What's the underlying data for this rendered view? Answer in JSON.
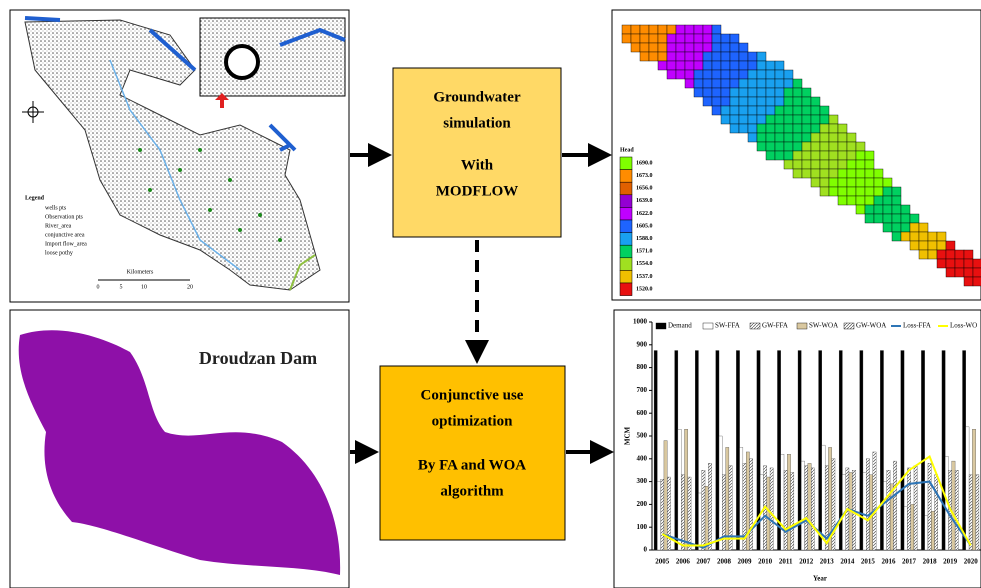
{
  "map": {
    "legend_title": "Legend",
    "legend_items": [
      "wells pts",
      "Observation pts",
      "River_area",
      "conjunctive area",
      "Import flow_area",
      "loose pothy"
    ],
    "scale_title": "Kilometers",
    "scale_labels": [
      "0",
      "5",
      "10",
      "20"
    ]
  },
  "simulation_box": {
    "lines": [
      "Groundwater",
      "simulation",
      "With",
      "MODFLOW"
    ]
  },
  "head_map": {
    "legend_title": "Head",
    "legend": [
      {
        "label": "1690.0",
        "color": "#80ff00"
      },
      {
        "label": "1673.0",
        "color": "#ff8c00"
      },
      {
        "label": "1656.0",
        "color": "#e06000"
      },
      {
        "label": "1639.0",
        "color": "#9400d3"
      },
      {
        "label": "1622.0",
        "color": "#c000ff"
      },
      {
        "label": "1605.0",
        "color": "#1e64ff"
      },
      {
        "label": "1588.0",
        "color": "#19a0f0"
      },
      {
        "label": "1571.0",
        "color": "#00d060"
      },
      {
        "label": "1554.0",
        "color": "#a0e020"
      },
      {
        "label": "1537.0",
        "color": "#f0c000"
      },
      {
        "label": "1520.0",
        "color": "#e81010"
      }
    ]
  },
  "dam": {
    "title": "Droudzan Dam"
  },
  "optimization_box": {
    "lines": [
      "Conjunctive use",
      "optimization",
      "By FA and WOA",
      "algorithm"
    ]
  },
  "chart_data": {
    "type": "bar",
    "y_label": "MCM",
    "x_label": "Year",
    "categories": [
      "2005",
      "2006",
      "2007",
      "2008",
      "2009",
      "2010",
      "2011",
      "2012",
      "2013",
      "2014",
      "2015",
      "2016",
      "2017",
      "2018",
      "2019",
      "2020"
    ],
    "ylim": [
      0,
      1000
    ],
    "yticks": [
      0,
      100,
      200,
      300,
      400,
      500,
      600,
      700,
      800,
      900,
      1000
    ],
    "series": [
      {
        "name": "Demand",
        "type": "bar",
        "color": "#000000",
        "values": [
          875,
          875,
          875,
          875,
          875,
          875,
          875,
          875,
          875,
          875,
          875,
          875,
          875,
          875,
          875,
          875
        ]
      },
      {
        "name": "SW-FFA",
        "type": "bar",
        "color": "#ffffff",
        "values": [
          300,
          530,
          250,
          500,
          450,
          330,
          420,
          390,
          460,
          330,
          340,
          300,
          190,
          150,
          410,
          540
        ]
      },
      {
        "name": "GW-FFA",
        "type": "bar",
        "color": "#8a8a8a",
        "values": [
          310,
          330,
          350,
          330,
          380,
          370,
          350,
          370,
          370,
          360,
          400,
          350,
          360,
          380,
          350,
          330
        ]
      },
      {
        "name": "SW-WOA",
        "type": "bar",
        "color": "#d9c8a0",
        "values": [
          480,
          530,
          280,
          450,
          430,
          320,
          420,
          380,
          450,
          340,
          330,
          290,
          200,
          170,
          390,
          530
        ]
      },
      {
        "name": "GW-WOA",
        "type": "bar",
        "color": "#c8c8c8",
        "values": [
          320,
          320,
          380,
          370,
          400,
          360,
          340,
          360,
          400,
          350,
          430,
          390,
          370,
          330,
          350,
          330
        ]
      },
      {
        "name": "Loss-FFA",
        "type": "line",
        "color": "#2e75b6",
        "values": [
          70,
          40,
          10,
          60,
          60,
          150,
          80,
          130,
          50,
          180,
          150,
          220,
          290,
          300,
          150,
          20
        ]
      },
      {
        "name": "Loss-WO",
        "type": "line",
        "color": "#ffff00",
        "values": [
          70,
          20,
          20,
          50,
          50,
          190,
          90,
          140,
          30,
          180,
          130,
          240,
          350,
          410,
          180,
          20
        ]
      }
    ]
  }
}
